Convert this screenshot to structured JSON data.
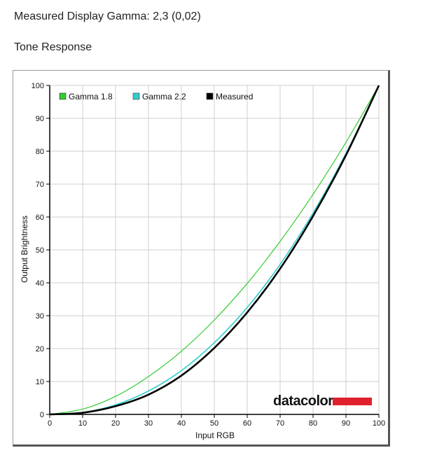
{
  "header": {
    "measured_gamma": "Measured Display Gamma: 2,3 (0,02)",
    "section_title": "Tone Response"
  },
  "logo": {
    "text": "datacolor",
    "bar_color": "#e0202c"
  },
  "colors": {
    "gamma18": "#33cc33",
    "gamma22": "#33cccc",
    "measured": "#000000",
    "grid": "#cfcfcf"
  },
  "chart_data": {
    "type": "line",
    "title": "",
    "xlabel": "Input RGB",
    "ylabel": "Output Brightness",
    "xlim": [
      0,
      100
    ],
    "ylim": [
      0,
      100
    ],
    "xticks": [
      0,
      10,
      20,
      30,
      40,
      50,
      60,
      70,
      80,
      90,
      100
    ],
    "yticks": [
      0,
      10,
      20,
      30,
      40,
      50,
      60,
      70,
      80,
      90,
      100
    ],
    "grid": true,
    "legend_position": "top-left",
    "x": [
      0,
      10,
      20,
      30,
      40,
      50,
      60,
      70,
      80,
      90,
      100
    ],
    "series": [
      {
        "name": "Gamma 1.8",
        "color": "#33cc33",
        "values": [
          0,
          1.6,
          5.5,
          11.5,
          19.2,
          28.7,
          39.8,
          52.6,
          66.9,
          82.7,
          100
        ]
      },
      {
        "name": "Gamma 2.2",
        "color": "#33cccc",
        "values": [
          0,
          0.6,
          2.9,
          7.1,
          13.3,
          21.8,
          32.5,
          45.6,
          61.2,
          79.3,
          100
        ]
      },
      {
        "name": "Measured",
        "color": "#000000",
        "values": [
          0,
          0.5,
          2.5,
          6.0,
          11.8,
          20.2,
          31.0,
          44.3,
          60.3,
          78.8,
          100
        ]
      }
    ]
  }
}
